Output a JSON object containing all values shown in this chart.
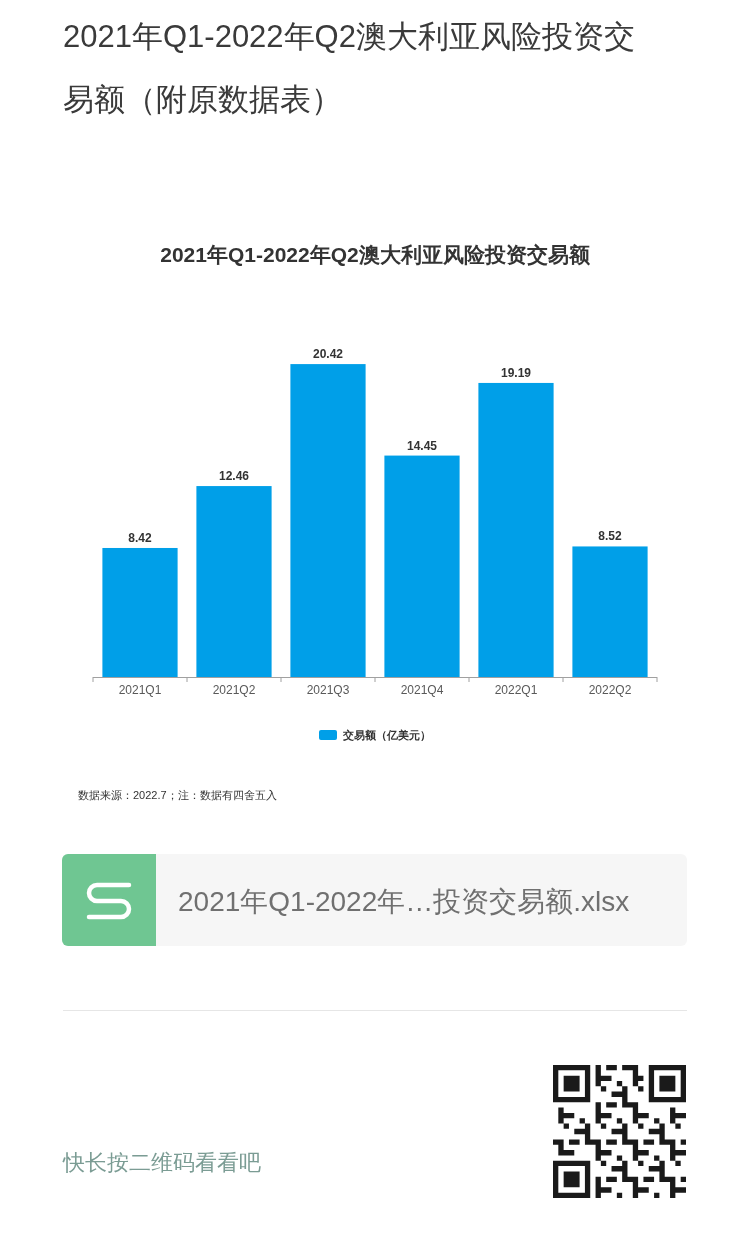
{
  "chart_data": {
    "type": "bar",
    "title": "2021年Q1-2022年Q2澳大利亚风险投资交易额（附原数据表）",
    "subtitle": "2021年Q1-2022年Q2澳大利亚风险投资交易额",
    "categories": [
      "2021Q1",
      "2021Q2",
      "2021Q3",
      "2021Q4",
      "2022Q1",
      "2022Q2"
    ],
    "series": [
      {
        "name": "交易额（亿美元）",
        "color": "#009fe8",
        "values": [
          8.42,
          12.46,
          20.42,
          14.45,
          19.19,
          8.52
        ]
      }
    ],
    "data_labels": true,
    "legend": "bottom",
    "annotations": [
      "数据来源：2022.7；注：数据有四舍五入",
      "2021年Q1-2022年…投资交易额.xlsx",
      "快长按二维码看看吧"
    ]
  }
}
